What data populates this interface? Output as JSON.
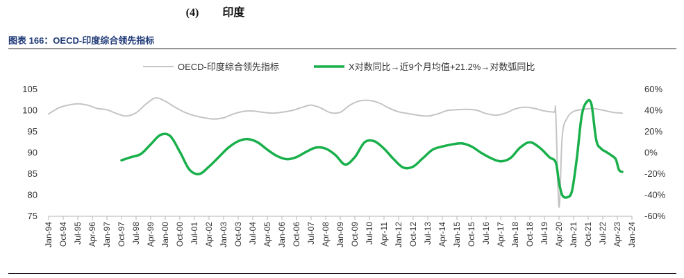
{
  "header": {
    "section_number": "(4)",
    "section_title": "印度"
  },
  "figure": {
    "title": "图表 166：OECD-印度综合领先指标"
  },
  "chart_data": {
    "type": "line",
    "legend_position": "top-center",
    "grid": false,
    "series": [
      {
        "name": "OECD-印度综合领先指标",
        "axis": "left",
        "color": "#c4c4c4",
        "points": [
          [
            "1994-01",
            99.2
          ],
          [
            "1994-07",
            100.6
          ],
          [
            "1995-01",
            101.3
          ],
          [
            "1995-07",
            101.6
          ],
          [
            "1996-01",
            101.3
          ],
          [
            "1996-07",
            100.5
          ],
          [
            "1997-01",
            100.2
          ],
          [
            "1997-07",
            99.3
          ],
          [
            "1998-01",
            98.7
          ],
          [
            "1998-07",
            99.5
          ],
          [
            "1999-01",
            101.5
          ],
          [
            "1999-07",
            103.0
          ],
          [
            "2000-01",
            102.2
          ],
          [
            "2000-07",
            100.8
          ],
          [
            "2001-01",
            99.6
          ],
          [
            "2001-07",
            98.8
          ],
          [
            "2002-01",
            98.3
          ],
          [
            "2002-07",
            98.0
          ],
          [
            "2003-01",
            98.3
          ],
          [
            "2003-07",
            99.2
          ],
          [
            "2004-01",
            99.8
          ],
          [
            "2004-07",
            99.9
          ],
          [
            "2005-01",
            99.6
          ],
          [
            "2005-07",
            99.4
          ],
          [
            "2006-01",
            99.6
          ],
          [
            "2006-07",
            100.0
          ],
          [
            "2007-01",
            100.7
          ],
          [
            "2007-07",
            101.3
          ],
          [
            "2008-01",
            100.6
          ],
          [
            "2008-07",
            99.5
          ],
          [
            "2009-01",
            99.6
          ],
          [
            "2009-07",
            101.3
          ],
          [
            "2010-01",
            102.3
          ],
          [
            "2010-07",
            102.4
          ],
          [
            "2011-01",
            101.8
          ],
          [
            "2011-07",
            100.6
          ],
          [
            "2012-01",
            99.7
          ],
          [
            "2012-07",
            99.3
          ],
          [
            "2013-01",
            98.9
          ],
          [
            "2013-07",
            98.7
          ],
          [
            "2014-01",
            99.2
          ],
          [
            "2014-07",
            100.0
          ],
          [
            "2015-01",
            100.2
          ],
          [
            "2015-07",
            100.3
          ],
          [
            "2016-01",
            100.1
          ],
          [
            "2016-07",
            99.3
          ],
          [
            "2017-01",
            98.9
          ],
          [
            "2017-07",
            99.4
          ],
          [
            "2018-01",
            100.4
          ],
          [
            "2018-07",
            100.8
          ],
          [
            "2019-01",
            100.5
          ],
          [
            "2019-07",
            99.9
          ],
          [
            "2020-01",
            99.6
          ],
          [
            "2020-02",
            99.4
          ],
          [
            "2020-04",
            77.2
          ],
          [
            "2020-06",
            94.0
          ],
          [
            "2020-09",
            98.2
          ],
          [
            "2021-01",
            99.8
          ],
          [
            "2021-07",
            100.3
          ],
          [
            "2022-01",
            100.5
          ],
          [
            "2022-07",
            100.1
          ],
          [
            "2023-01",
            99.6
          ],
          [
            "2023-07",
            99.4
          ]
        ]
      },
      {
        "name": "X对数同比→近9个月均值+21.2%→对数弧同比",
        "axis": "right",
        "color": "#19b04b",
        "points": [
          [
            "1997-10",
            -7
          ],
          [
            "1998-04",
            -4
          ],
          [
            "1998-10",
            -1
          ],
          [
            "1999-04",
            8
          ],
          [
            "1999-10",
            17
          ],
          [
            "2000-04",
            16
          ],
          [
            "2000-10",
            1
          ],
          [
            "2001-04",
            -16
          ],
          [
            "2001-10",
            -20
          ],
          [
            "2002-04",
            -13
          ],
          [
            "2002-10",
            -4
          ],
          [
            "2003-04",
            5
          ],
          [
            "2003-10",
            11
          ],
          [
            "2004-04",
            13
          ],
          [
            "2004-10",
            10
          ],
          [
            "2005-04",
            3
          ],
          [
            "2005-10",
            -3
          ],
          [
            "2006-04",
            -6
          ],
          [
            "2006-10",
            -4
          ],
          [
            "2007-04",
            1
          ],
          [
            "2007-10",
            5
          ],
          [
            "2008-04",
            4
          ],
          [
            "2008-10",
            -2
          ],
          [
            "2009-04",
            -11
          ],
          [
            "2009-10",
            -4
          ],
          [
            "2010-04",
            10
          ],
          [
            "2010-10",
            11
          ],
          [
            "2011-04",
            4
          ],
          [
            "2011-10",
            -6
          ],
          [
            "2012-04",
            -14
          ],
          [
            "2012-10",
            -13
          ],
          [
            "2013-04",
            -5
          ],
          [
            "2013-10",
            3
          ],
          [
            "2014-04",
            6
          ],
          [
            "2014-10",
            8
          ],
          [
            "2015-04",
            9
          ],
          [
            "2015-10",
            6
          ],
          [
            "2016-04",
            0
          ],
          [
            "2016-10",
            -5
          ],
          [
            "2017-04",
            -8
          ],
          [
            "2017-10",
            -5
          ],
          [
            "2018-04",
            5
          ],
          [
            "2018-10",
            10
          ],
          [
            "2019-04",
            5
          ],
          [
            "2019-10",
            -4
          ],
          [
            "2020-02",
            -9
          ],
          [
            "2020-04",
            -28
          ],
          [
            "2020-06",
            -40
          ],
          [
            "2020-09",
            -42
          ],
          [
            "2020-12",
            -36
          ],
          [
            "2021-03",
            -5
          ],
          [
            "2021-06",
            35
          ],
          [
            "2021-09",
            48
          ],
          [
            "2021-12",
            46
          ],
          [
            "2022-03",
            12
          ],
          [
            "2022-06",
            4
          ],
          [
            "2022-09",
            1
          ],
          [
            "2022-12",
            -2
          ],
          [
            "2023-03",
            -6
          ],
          [
            "2023-05",
            -16
          ],
          [
            "2023-07",
            -18
          ]
        ]
      }
    ],
    "y_left": {
      "min": 75,
      "max": 105,
      "ticks": [
        "75",
        "80",
        "85",
        "90",
        "95",
        "100",
        "105"
      ]
    },
    "y_right": {
      "min": -60,
      "max": 60,
      "ticks": [
        "-60%",
        "-40%",
        "-20%",
        "0%",
        "20%",
        "40%",
        "60%"
      ]
    },
    "x": {
      "min": "1994-01",
      "max": "2024-01",
      "tick_labels": [
        "Jan-94",
        "Oct-94",
        "Jul-95",
        "Apr-96",
        "Jan-97",
        "Oct-97",
        "Jul-98",
        "Apr-99",
        "Jan-00",
        "Oct-00",
        "Jul-01",
        "Apr-02",
        "Jan-03",
        "Oct-03",
        "Jul-04",
        "Apr-05",
        "Jan-06",
        "Oct-06",
        "Jul-07",
        "Apr-08",
        "Jan-09",
        "Oct-09",
        "Jul-10",
        "Apr-11",
        "Jan-12",
        "Oct-12",
        "Jul-13",
        "Apr-14",
        "Jan-15",
        "Oct-15",
        "Jul-16",
        "Apr-17",
        "Jan-18",
        "Oct-18",
        "Jul-19",
        "Apr-20",
        "Jan-21",
        "Oct-21",
        "Jul-22",
        "Apr-23",
        "Jan-24"
      ]
    }
  }
}
